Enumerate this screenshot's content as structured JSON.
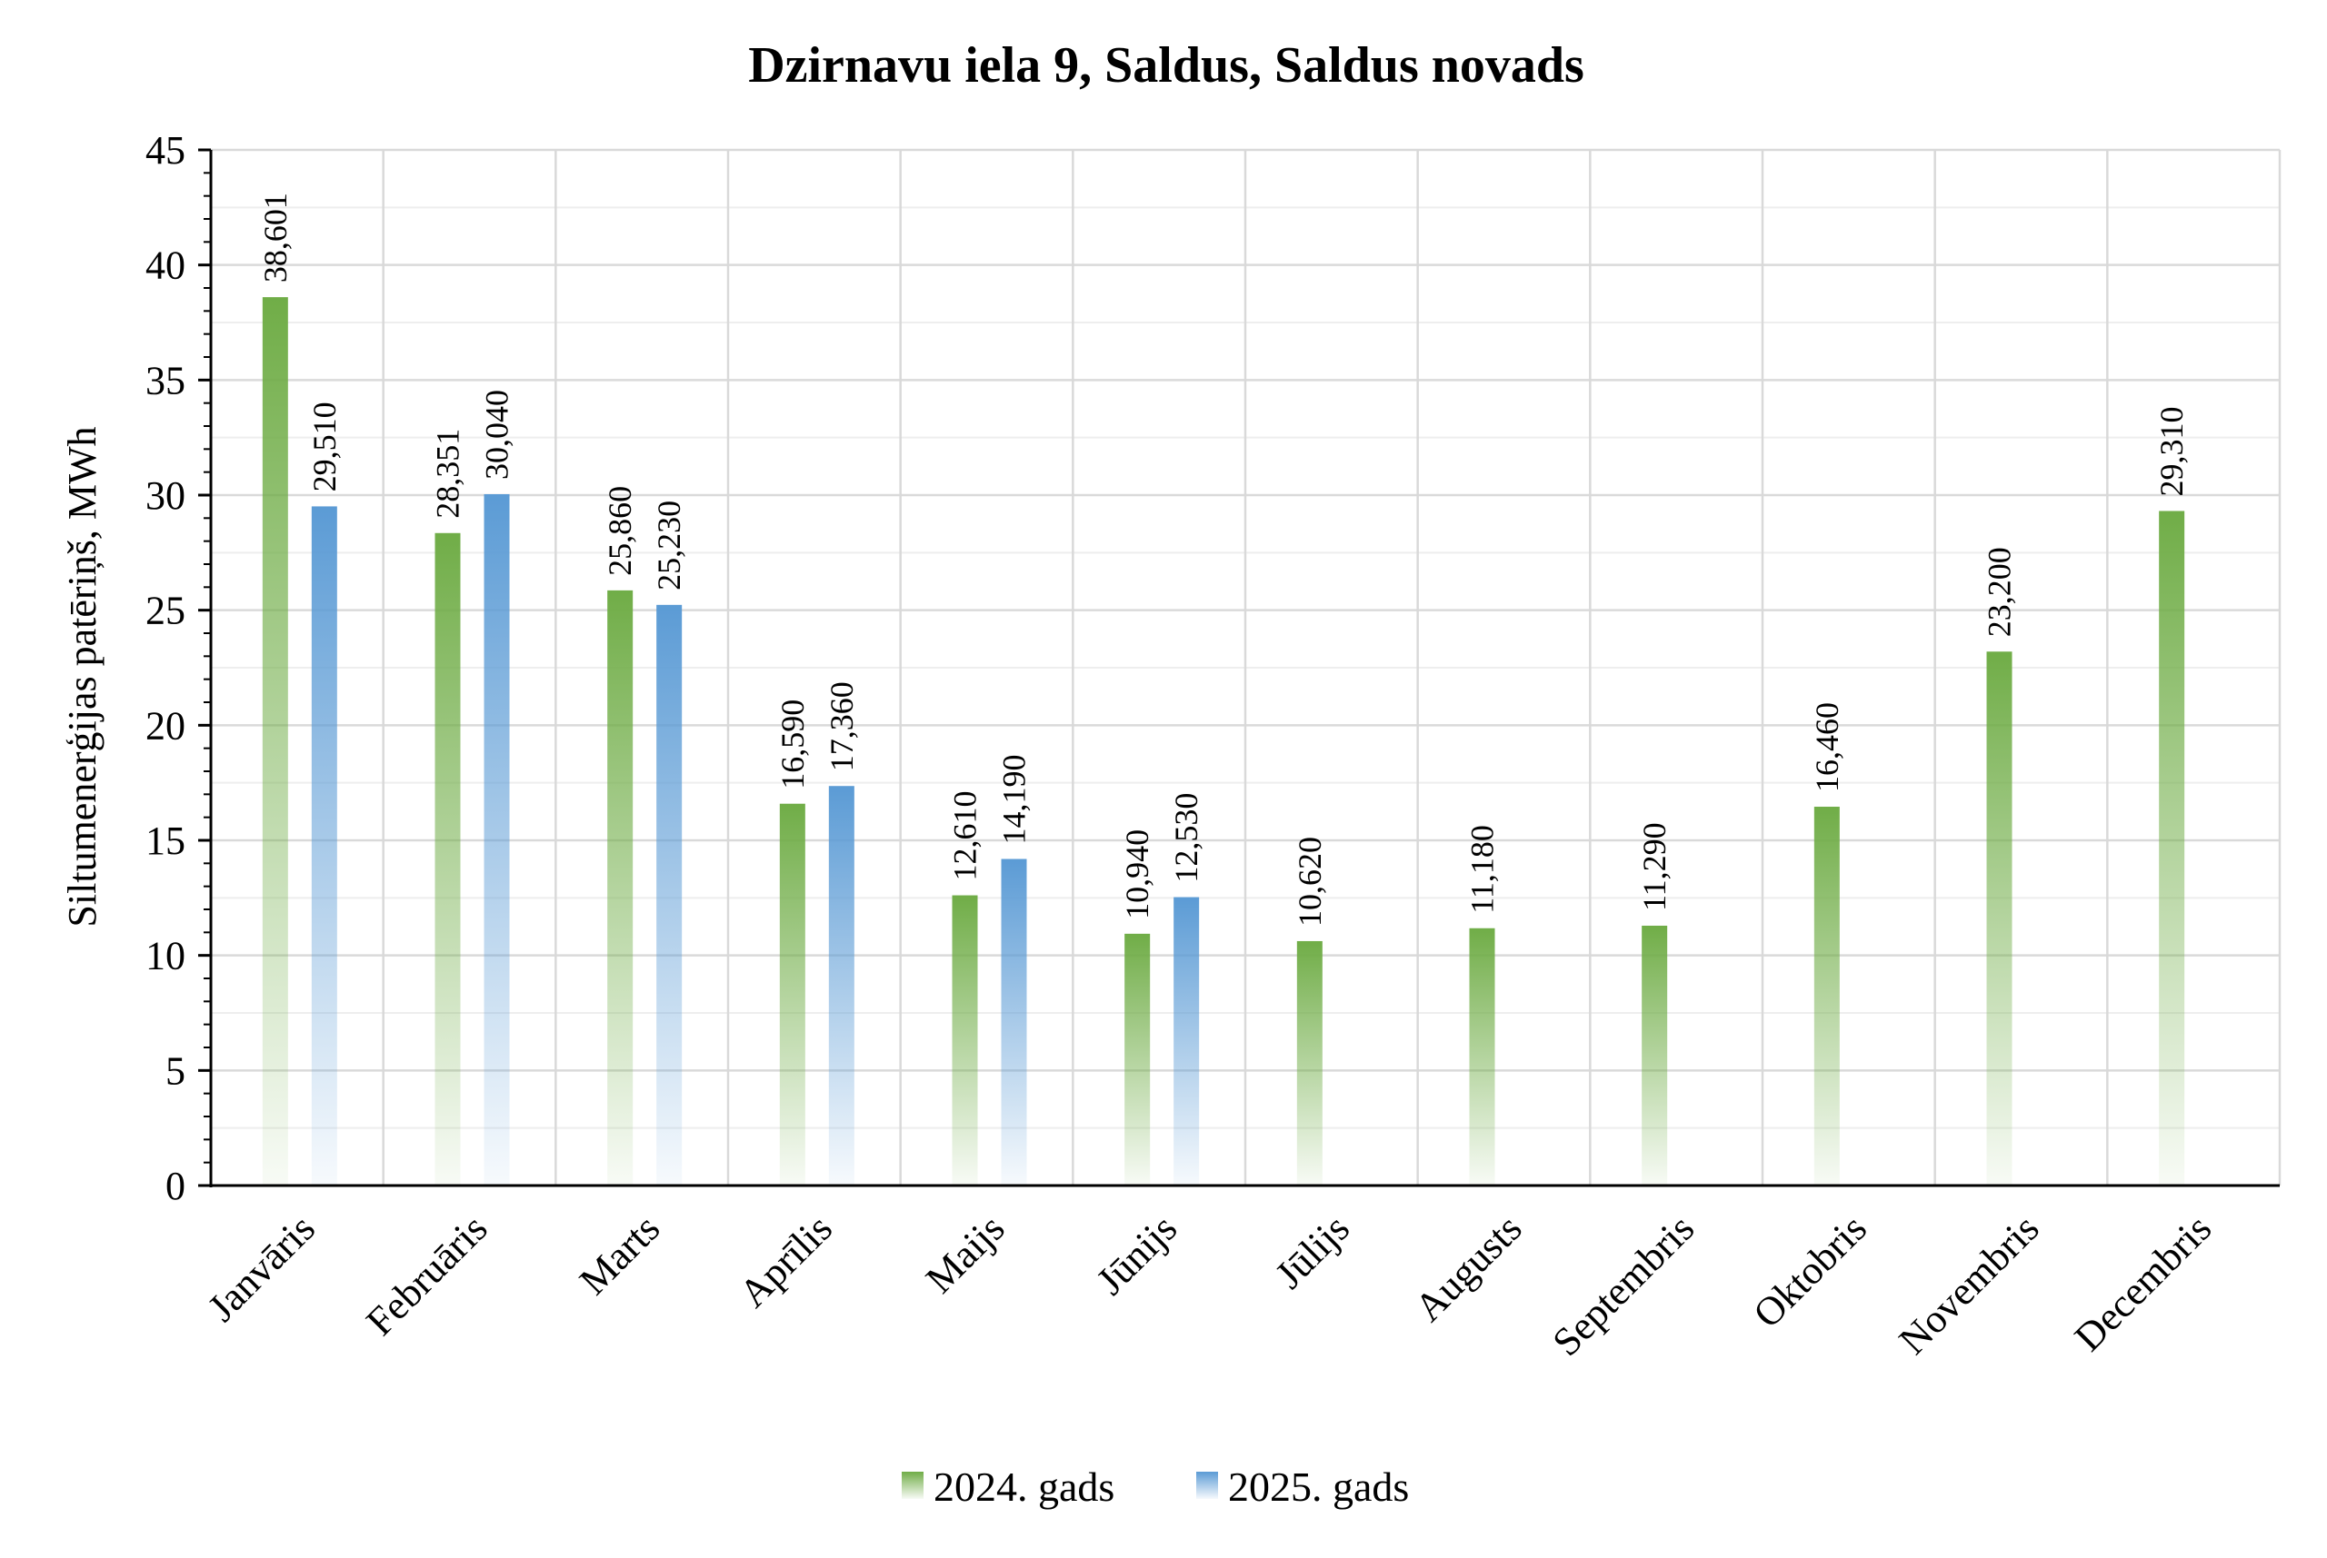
{
  "chart_data": {
    "type": "bar",
    "title": "Dzirnavu iela 9, Saldus, Saldus novads",
    "xlabel": "",
    "ylabel": "Siltumenerģijas patēriņš, MWh",
    "ylim": [
      0,
      45
    ],
    "yticks": [
      0,
      5,
      10,
      15,
      20,
      25,
      30,
      35,
      40,
      45
    ],
    "grid": true,
    "legend_position": "bottom",
    "categories": [
      "Janvāris",
      "Februāris",
      "Marts",
      "Aprīlis",
      "Maijs",
      "Jūnijs",
      "Jūlijs",
      "Augusts",
      "Septembris",
      "Oktobris",
      "Novembris",
      "Decembris"
    ],
    "series": [
      {
        "name": "2024. gads",
        "color": "#70ad47",
        "values": [
          38.601,
          28.351,
          25.86,
          16.59,
          12.61,
          10.94,
          10.62,
          11.18,
          11.29,
          16.46,
          23.2,
          29.31
        ],
        "labels": [
          "38,601",
          "28,351",
          "25,860",
          "16,590",
          "12,610",
          "10,940",
          "10,620",
          "11,180",
          "11,290",
          "16,460",
          "23,200",
          "29,310"
        ]
      },
      {
        "name": "2025. gads",
        "color": "#5b9bd5",
        "values": [
          29.51,
          30.04,
          25.23,
          17.36,
          14.19,
          12.53,
          null,
          null,
          null,
          null,
          null,
          null
        ],
        "labels": [
          "29,510",
          "30,040",
          "25,230",
          "17,360",
          "14,190",
          "12,530",
          "",
          "",
          "",
          "",
          "",
          ""
        ]
      }
    ]
  }
}
